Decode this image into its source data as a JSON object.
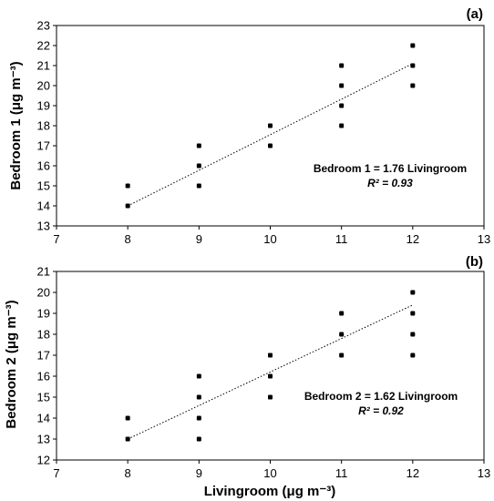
{
  "chart_data": [
    {
      "type": "scatter",
      "panel_label": "(a)",
      "ylabel": "Bedroom 1 (μg m⁻³)",
      "xlabel": "",
      "xlim": [
        7,
        13
      ],
      "ylim": [
        13,
        23
      ],
      "xticks": [
        7,
        8,
        9,
        10,
        11,
        12,
        13
      ],
      "yticks": [
        13,
        14,
        15,
        16,
        17,
        18,
        19,
        20,
        21,
        22,
        23
      ],
      "grid": false,
      "points": [
        {
          "x": 8,
          "y": 14
        },
        {
          "x": 8,
          "y": 15
        },
        {
          "x": 9,
          "y": 15
        },
        {
          "x": 9,
          "y": 16
        },
        {
          "x": 9,
          "y": 17
        },
        {
          "x": 10,
          "y": 17
        },
        {
          "x": 10,
          "y": 18
        },
        {
          "x": 11,
          "y": 18
        },
        {
          "x": 11,
          "y": 19
        },
        {
          "x": 11,
          "y": 20
        },
        {
          "x": 11,
          "y": 21
        },
        {
          "x": 12,
          "y": 20
        },
        {
          "x": 12,
          "y": 21
        },
        {
          "x": 12,
          "y": 22
        }
      ],
      "trendline": {
        "style": "dotted",
        "x": [
          8,
          12
        ],
        "y": [
          14.0,
          21.1
        ]
      },
      "equation": "Bedroom 1 = 1.76 Livingroom",
      "r_squared": "R² = 0.93"
    },
    {
      "type": "scatter",
      "panel_label": "(b)",
      "ylabel": "Bedroom 2 (μg m⁻³)",
      "xlabel": "Livingroom (μg m⁻³)",
      "xlim": [
        7,
        13
      ],
      "ylim": [
        12,
        21
      ],
      "xticks": [
        7,
        8,
        9,
        10,
        11,
        12,
        13
      ],
      "yticks": [
        12,
        13,
        14,
        15,
        16,
        17,
        18,
        19,
        20,
        21
      ],
      "grid": false,
      "points": [
        {
          "x": 8,
          "y": 13
        },
        {
          "x": 8,
          "y": 14
        },
        {
          "x": 9,
          "y": 13
        },
        {
          "x": 9,
          "y": 14
        },
        {
          "x": 9,
          "y": 15
        },
        {
          "x": 9,
          "y": 16
        },
        {
          "x": 10,
          "y": 15
        },
        {
          "x": 10,
          "y": 16
        },
        {
          "x": 10,
          "y": 17
        },
        {
          "x": 11,
          "y": 17
        },
        {
          "x": 11,
          "y": 18
        },
        {
          "x": 11,
          "y": 19
        },
        {
          "x": 12,
          "y": 17
        },
        {
          "x": 12,
          "y": 18
        },
        {
          "x": 12,
          "y": 19
        },
        {
          "x": 12,
          "y": 20
        }
      ],
      "trendline": {
        "style": "dotted",
        "x": [
          8,
          12
        ],
        "y": [
          13.0,
          19.4
        ]
      },
      "equation": "Bedroom 2 = 1.62 Livingroom",
      "r_squared": "R² = 0.92"
    }
  ]
}
